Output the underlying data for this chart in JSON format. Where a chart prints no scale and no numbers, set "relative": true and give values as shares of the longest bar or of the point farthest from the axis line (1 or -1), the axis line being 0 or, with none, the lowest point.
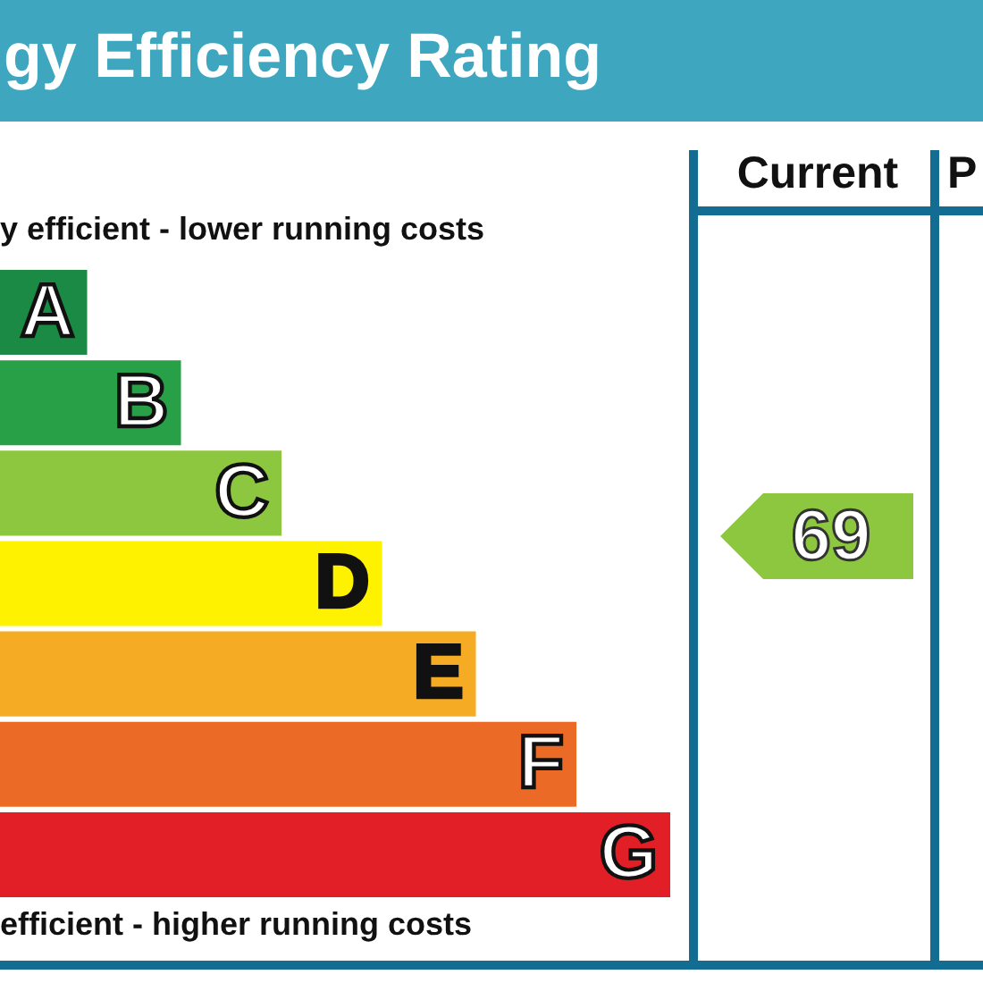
{
  "chart_data": {
    "type": "bar",
    "orientation": "horizontal",
    "relative": true,
    "title": "gy Efficiency Rating",
    "categories": [
      "A",
      "B",
      "C",
      "D",
      "E",
      "F",
      "G"
    ],
    "values": [
      0.13,
      0.27,
      0.42,
      0.57,
      0.71,
      0.86,
      1
    ],
    "colors": [
      "#1b8a44",
      "#27a048",
      "#8dc63f",
      "#fff200",
      "#f5ab23",
      "#ea6a26",
      "#e21f26"
    ],
    "annotations": [
      "y efficient - lower running costs",
      "efficient - higher running costs",
      "Current",
      "P",
      "69"
    ]
  }
}
